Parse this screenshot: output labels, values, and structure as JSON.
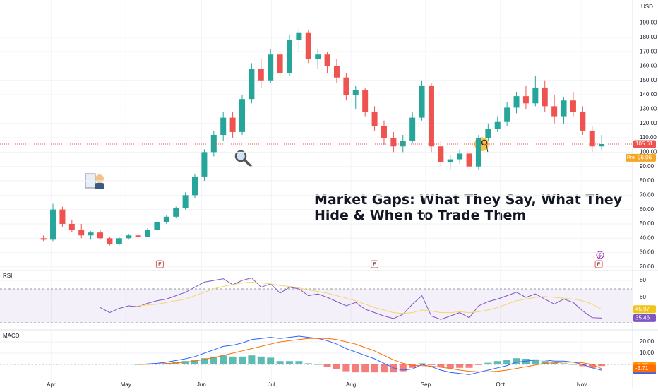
{
  "chart_data": [
    {
      "type": "candlestick",
      "currency": "USD",
      "title_lines": [
        "Market Gaps: What They Say, What They Hide & When to Trade Them"
      ],
      "xlim": [
        -4.6,
        62.2
      ],
      "xticks": [
        {
          "value": 0.8,
          "label": "Apr"
        },
        {
          "value": 8.7,
          "label": "May"
        },
        {
          "value": 16.7,
          "label": "Jun"
        },
        {
          "value": 24.1,
          "label": "Jul"
        },
        {
          "value": 32.5,
          "label": "Aug"
        },
        {
          "value": 40.4,
          "label": "Sep"
        },
        {
          "value": 48.3,
          "label": "Oct"
        },
        {
          "value": 56.9,
          "label": "Nov"
        }
      ],
      "ylim": [
        18,
        206
      ],
      "yticks": [
        {
          "value": 20,
          "label": "20.00"
        },
        {
          "value": 30,
          "label": "30.00"
        },
        {
          "value": 40,
          "label": "40.00"
        },
        {
          "value": 50,
          "label": "50.00"
        },
        {
          "value": 60,
          "label": "60.00"
        },
        {
          "value": 70,
          "label": "70.00"
        },
        {
          "value": 80,
          "label": "80.00"
        },
        {
          "value": 90,
          "label": "90.00"
        },
        {
          "value": 100,
          "label": "100.00"
        },
        {
          "value": 110,
          "label": "110.00"
        },
        {
          "value": 120,
          "label": "120.00"
        },
        {
          "value": 130,
          "label": "130.00"
        },
        {
          "value": 140,
          "label": "140.00"
        },
        {
          "value": 150,
          "label": "150.00"
        },
        {
          "value": 160,
          "label": "160.00"
        },
        {
          "value": 170,
          "label": "170.00"
        },
        {
          "value": 180,
          "label": "180.00"
        },
        {
          "value": 190,
          "label": "190.00"
        }
      ],
      "up_color": "#26a69a",
      "down_color": "#ef5350",
      "open": [
        40,
        39,
        60,
        50,
        46,
        42,
        44,
        40,
        36,
        40,
        42,
        41,
        46,
        51,
        55,
        61,
        70,
        83,
        100,
        112,
        124,
        114,
        137,
        158,
        150,
        168,
        155,
        178,
        183,
        165,
        168,
        160,
        152,
        140,
        143,
        128,
        118,
        110,
        104,
        108,
        124,
        146,
        104,
        93,
        95,
        99,
        90,
        110,
        116,
        121,
        131,
        139,
        134,
        145,
        132,
        125,
        136,
        128,
        115,
        104
      ],
      "high": [
        42,
        64,
        62,
        53,
        50,
        45,
        46,
        41,
        41,
        43,
        44,
        47,
        52,
        56,
        62,
        72,
        85,
        102,
        115,
        128,
        128,
        140,
        162,
        165,
        172,
        170,
        182,
        187,
        185,
        172,
        170,
        165,
        155,
        146,
        145,
        132,
        122,
        114,
        112,
        128,
        150,
        148,
        108,
        98,
        102,
        100,
        112,
        120,
        125,
        135,
        142,
        146,
        153,
        150,
        140,
        138,
        142,
        132,
        118,
        112
      ],
      "low": [
        38,
        38,
        48,
        44,
        40,
        39,
        39,
        35,
        35,
        39,
        40,
        41,
        45,
        50,
        54,
        60,
        68,
        80,
        97,
        108,
        110,
        112,
        134,
        145,
        148,
        152,
        153,
        170,
        162,
        158,
        155,
        148,
        136,
        130,
        125,
        115,
        105,
        100,
        100,
        106,
        122,
        100,
        90,
        88,
        92,
        86,
        88,
        108,
        114,
        118,
        127,
        130,
        132,
        128,
        120,
        120,
        125,
        112,
        100,
        101
      ],
      "close": [
        39,
        60,
        50,
        46,
        42,
        44,
        40,
        36,
        40,
        42,
        41,
        46,
        51,
        55,
        61,
        70,
        83,
        100,
        112,
        124,
        114,
        137,
        158,
        150,
        168,
        155,
        178,
        183,
        165,
        168,
        160,
        152,
        140,
        143,
        128,
        118,
        110,
        104,
        108,
        124,
        146,
        104,
        93,
        95,
        99,
        90,
        110,
        116,
        121,
        131,
        139,
        134,
        145,
        132,
        125,
        136,
        128,
        115,
        104,
        105.61
      ],
      "last_price": 105.61,
      "last_color": "#ef5350",
      "pre_price": {
        "label": "Pre",
        "value": 96.06
      },
      "pre_color": "#f5a623",
      "events": [
        {
          "x": 12.3,
          "label": "E"
        },
        {
          "x": 35,
          "label": "E"
        },
        {
          "x": 58.7,
          "label": "E"
        }
      ]
    },
    {
      "type": "line",
      "label": "RSI",
      "ylim": [
        23.3,
        90
      ],
      "yticks": [
        60,
        80
      ],
      "bands": [
        30,
        70
      ],
      "band_color": "#7e57c2",
      "series": [
        {
          "name": "RSI",
          "color": "#7e57c2",
          "values": [
            null,
            null,
            null,
            null,
            null,
            null,
            48,
            42,
            47,
            50,
            49,
            53,
            56,
            58,
            62,
            66,
            72,
            78,
            80,
            82,
            75,
            80,
            83,
            72,
            76,
            65,
            72,
            70,
            62,
            64,
            60,
            55,
            50,
            54,
            46,
            42,
            38,
            35,
            40,
            52,
            62,
            38,
            34,
            38,
            42,
            36,
            50,
            55,
            58,
            62,
            66,
            60,
            64,
            58,
            52,
            58,
            54,
            44,
            36,
            35.46
          ]
        },
        {
          "name": "RSI MA",
          "color": "#f7d66b",
          "values": [
            null,
            null,
            null,
            null,
            null,
            null,
            null,
            null,
            null,
            null,
            50,
            51,
            52,
            54,
            56,
            58,
            62,
            66,
            70,
            73,
            75,
            77,
            78,
            77,
            76,
            74,
            73,
            71,
            69,
            67,
            65,
            62,
            59,
            56,
            52,
            48,
            45,
            42,
            41,
            42,
            45,
            44,
            42,
            42,
            43,
            42,
            43,
            45,
            48,
            52,
            56,
            58,
            60,
            61,
            60,
            59,
            58,
            56,
            52,
            45.97
          ]
        }
      ]
    },
    {
      "type": "combo",
      "label": "MACD",
      "ylim": [
        -15,
        30
      ],
      "yticks": [
        {
          "value": 10,
          "label": "10.00"
        },
        {
          "value": 20,
          "label": "20.00"
        }
      ],
      "series": [
        {
          "name": "Histogram",
          "kind": "bar",
          "color": "#26a69a",
          "neg_color": "#ef5350",
          "values": [
            null,
            null,
            null,
            null,
            null,
            null,
            null,
            null,
            null,
            null,
            0,
            0.3,
            0.6,
            1.2,
            2.2,
            3,
            4,
            5.5,
            7,
            8,
            7,
            7,
            8,
            7,
            6,
            3,
            3,
            3,
            1,
            0,
            -2,
            -4,
            -6,
            -7,
            -7,
            -7,
            -7,
            -7,
            -6,
            -3,
            1,
            -0.5,
            -2.5,
            -3.5,
            -3,
            -3,
            -0.5,
            1.5,
            3,
            4,
            5.5,
            5,
            4.5,
            3,
            1.5,
            1,
            0,
            -1.5,
            -3,
            -1.35
          ]
        },
        {
          "name": "MACD",
          "kind": "line",
          "color": "#2962ff",
          "values": [
            null,
            null,
            null,
            null,
            null,
            null,
            null,
            null,
            null,
            null,
            0,
            0.5,
            1,
            2,
            3.5,
            5,
            7,
            10,
            13,
            16,
            17,
            19,
            22,
            23,
            24,
            23,
            24,
            25,
            24,
            23,
            21,
            18,
            14,
            11,
            8,
            5,
            1,
            -3,
            -5,
            -4,
            0,
            -2,
            -5,
            -7,
            -8,
            -9,
            -7,
            -5,
            -3,
            -1,
            2,
            3,
            4,
            4,
            3,
            3,
            2,
            0,
            -3,
            -5.06
          ]
        },
        {
          "name": "Signal",
          "kind": "line",
          "color": "#ff6d00",
          "values": [
            null,
            null,
            null,
            null,
            null,
            null,
            null,
            null,
            null,
            null,
            0,
            0.2,
            0.4,
            0.8,
            1.3,
            2,
            3,
            4.5,
            6,
            8,
            10,
            12,
            14,
            16,
            18,
            20,
            21,
            22,
            23,
            23,
            23,
            22,
            20,
            18,
            15,
            12,
            8,
            4,
            1,
            -1,
            -1,
            -1.5,
            -2.5,
            -3.5,
            -5,
            -6,
            -6.5,
            -6.5,
            -6,
            -5,
            -3.5,
            -2,
            -0.5,
            1,
            1.5,
            2,
            2,
            1.5,
            0,
            -3.71
          ]
        }
      ]
    }
  ]
}
